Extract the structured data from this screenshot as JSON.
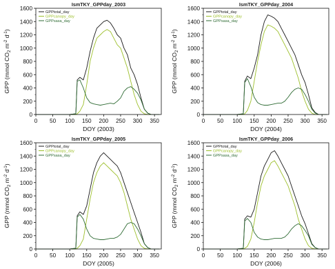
{
  "panels": [
    {
      "title": "IsmTKY_GPPday_2003",
      "xlabel": "DOY (2003)",
      "ylabel": "GPP (mmol CO2 m-2 d-1)",
      "legend": [
        "GPPtotal_day",
        "GPPcanopy_day",
        "GPPsasa_day"
      ]
    },
    {
      "title": "IsmTKY_GPPday_2004",
      "xlabel": "DOY (2004)",
      "ylabel": "GPP (mmol CO2 m-2 d-1)",
      "legend": [
        "GPPtotal_day",
        "GPPcanopy_day",
        "GPPsasa_day"
      ]
    },
    {
      "title": "IsmTKY_GPPday_2005",
      "xlabel": "DOY (2005)",
      "ylabel": "GPP (mmol CO2 m-2 d-1)",
      "legend": [
        "GPPtotal_day",
        "GPPcanopy_day",
        "GPPsasa_day"
      ]
    },
    {
      "title": "IsmTKY_GPPday_2006",
      "xlabel": "DOY (2006)",
      "ylabel": "GPP (mmol CO2 m-2 d-1)",
      "legend": [
        "GPPtotal_day",
        "GPPcanopy_day",
        "GPPsasa_day"
      ]
    }
  ],
  "colors": {
    "total": "#1a1a1a",
    "canopy": "#9cbf2a",
    "sasa": "#2f6b34",
    "axis": "#111111"
  },
  "chart_data": [
    {
      "type": "line",
      "title": "IsmTKY_GPPday_2003",
      "xlabel": "DOY (2003)",
      "ylabel": "GPP (mmol CO2 m-2 d-1)",
      "xlim": [
        0,
        370
      ],
      "ylim": [
        0,
        1600
      ],
      "xticks": [
        0,
        50,
        100,
        150,
        200,
        250,
        300,
        350
      ],
      "yticks": [
        0,
        200,
        400,
        600,
        800,
        1000,
        1200,
        1400,
        1600
      ],
      "legend_position": "top-left",
      "x": [
        0,
        100,
        118,
        122,
        130,
        140,
        150,
        160,
        170,
        180,
        190,
        200,
        210,
        220,
        230,
        240,
        250,
        260,
        270,
        280,
        290,
        300,
        310,
        320,
        330,
        340,
        365
      ],
      "series": [
        {
          "name": "GPPtotal_day",
          "values": [
            0,
            0,
            10,
            520,
            560,
            520,
            700,
            950,
            1150,
            1300,
            1350,
            1400,
            1420,
            1380,
            1300,
            1200,
            1150,
            1000,
            900,
            700,
            600,
            450,
            250,
            80,
            20,
            0,
            0
          ]
        },
        {
          "name": "GPPcanopy_day",
          "values": [
            0,
            0,
            0,
            10,
            50,
            150,
            450,
            800,
            1000,
            1150,
            1200,
            1250,
            1280,
            1250,
            1150,
            1050,
            1000,
            850,
            700,
            500,
            300,
            150,
            50,
            10,
            0,
            0,
            0
          ]
        },
        {
          "name": "GPPsasa_day",
          "values": [
            0,
            0,
            10,
            500,
            520,
            400,
            250,
            180,
            160,
            150,
            140,
            150,
            160,
            170,
            160,
            200,
            250,
            350,
            400,
            420,
            380,
            320,
            220,
            80,
            20,
            0,
            0
          ]
        }
      ]
    },
    {
      "type": "line",
      "title": "IsmTKY_GPPday_2004",
      "xlabel": "DOY (2004)",
      "ylabel": "GPP (mmol CO2 m-2 d-1)",
      "xlim": [
        0,
        370
      ],
      "ylim": [
        0,
        1600
      ],
      "xticks": [
        0,
        50,
        100,
        150,
        200,
        250,
        300,
        350
      ],
      "yticks": [
        0,
        200,
        400,
        600,
        800,
        1000,
        1200,
        1400,
        1600
      ],
      "legend_position": "top-left",
      "x": [
        0,
        100,
        118,
        122,
        130,
        140,
        150,
        160,
        170,
        180,
        190,
        200,
        210,
        220,
        230,
        240,
        250,
        260,
        270,
        280,
        290,
        300,
        310,
        320,
        330,
        340,
        365
      ],
      "series": [
        {
          "name": "GPPtotal_day",
          "values": [
            0,
            0,
            10,
            500,
            580,
            540,
            700,
            900,
            1200,
            1400,
            1500,
            1480,
            1450,
            1400,
            1300,
            1200,
            1100,
            1000,
            900,
            750,
            600,
            480,
            300,
            100,
            30,
            0,
            0
          ]
        },
        {
          "name": "GPPcanopy_day",
          "values": [
            0,
            0,
            0,
            10,
            60,
            200,
            500,
            800,
            1050,
            1250,
            1350,
            1330,
            1300,
            1250,
            1150,
            1050,
            950,
            850,
            700,
            550,
            350,
            200,
            80,
            20,
            0,
            0,
            0
          ]
        },
        {
          "name": "GPPsasa_day",
          "values": [
            0,
            0,
            10,
            480,
            540,
            420,
            260,
            180,
            150,
            140,
            140,
            150,
            160,
            170,
            170,
            200,
            260,
            330,
            380,
            400,
            380,
            300,
            200,
            80,
            20,
            0,
            0
          ]
        }
      ]
    },
    {
      "type": "line",
      "title": "IsmTKY_GPPday_2005",
      "xlabel": "DOY (2005)",
      "ylabel": "GPP (mmol CO2 m-2 d-1)",
      "xlim": [
        0,
        370
      ],
      "ylim": [
        0,
        1600
      ],
      "xticks": [
        0,
        50,
        100,
        150,
        200,
        250,
        300,
        350
      ],
      "yticks": [
        0,
        200,
        400,
        600,
        800,
        1000,
        1200,
        1400,
        1600
      ],
      "legend_position": "top-left",
      "x": [
        0,
        100,
        118,
        122,
        130,
        140,
        150,
        160,
        170,
        180,
        190,
        200,
        210,
        220,
        230,
        240,
        250,
        260,
        270,
        280,
        290,
        300,
        310,
        320,
        330,
        340,
        365
      ],
      "series": [
        {
          "name": "GPPtotal_day",
          "values": [
            0,
            0,
            10,
            500,
            560,
            520,
            650,
            900,
            1150,
            1300,
            1400,
            1450,
            1400,
            1350,
            1300,
            1250,
            1150,
            1000,
            850,
            700,
            550,
            400,
            250,
            80,
            20,
            0,
            0
          ]
        },
        {
          "name": "GPPcanopy_day",
          "values": [
            0,
            0,
            0,
            10,
            50,
            150,
            450,
            750,
            1000,
            1150,
            1250,
            1300,
            1250,
            1200,
            1150,
            1100,
            1000,
            850,
            650,
            450,
            300,
            150,
            50,
            10,
            0,
            0,
            0
          ]
        },
        {
          "name": "GPPsasa_day",
          "values": [
            0,
            0,
            10,
            480,
            520,
            450,
            300,
            200,
            160,
            150,
            140,
            140,
            150,
            160,
            160,
            180,
            220,
            300,
            380,
            400,
            380,
            300,
            200,
            80,
            20,
            0,
            0
          ]
        }
      ]
    },
    {
      "type": "line",
      "title": "IsmTKY_GPPday_2006",
      "xlabel": "DOY (2006)",
      "ylabel": "GPP (mmol CO2 m-2 d-1)",
      "xlim": [
        0,
        370
      ],
      "ylim": [
        0,
        1600
      ],
      "xticks": [
        0,
        50,
        100,
        150,
        200,
        250,
        300,
        350
      ],
      "yticks": [
        0,
        200,
        400,
        600,
        800,
        1000,
        1200,
        1400,
        1600
      ],
      "legend_position": "top-left",
      "x": [
        0,
        100,
        118,
        122,
        130,
        140,
        150,
        160,
        170,
        180,
        190,
        200,
        210,
        220,
        230,
        240,
        250,
        260,
        270,
        280,
        290,
        300,
        310,
        320,
        330,
        340,
        365
      ],
      "series": [
        {
          "name": "GPPtotal_day",
          "values": [
            0,
            0,
            10,
            450,
            500,
            480,
            600,
            850,
            1100,
            1250,
            1350,
            1450,
            1480,
            1400,
            1300,
            1200,
            1100,
            950,
            800,
            650,
            500,
            380,
            230,
            80,
            20,
            0,
            0
          ]
        },
        {
          "name": "GPPcanopy_day",
          "values": [
            0,
            0,
            0,
            10,
            40,
            150,
            400,
            700,
            950,
            1100,
            1200,
            1300,
            1330,
            1250,
            1150,
            1050,
            950,
            800,
            650,
            450,
            300,
            150,
            50,
            10,
            0,
            0,
            0
          ]
        },
        {
          "name": "GPPsasa_day",
          "values": [
            0,
            0,
            10,
            420,
            460,
            400,
            250,
            180,
            150,
            140,
            140,
            150,
            160,
            160,
            160,
            180,
            230,
            300,
            350,
            380,
            350,
            280,
            200,
            70,
            20,
            0,
            0
          ]
        }
      ]
    }
  ]
}
